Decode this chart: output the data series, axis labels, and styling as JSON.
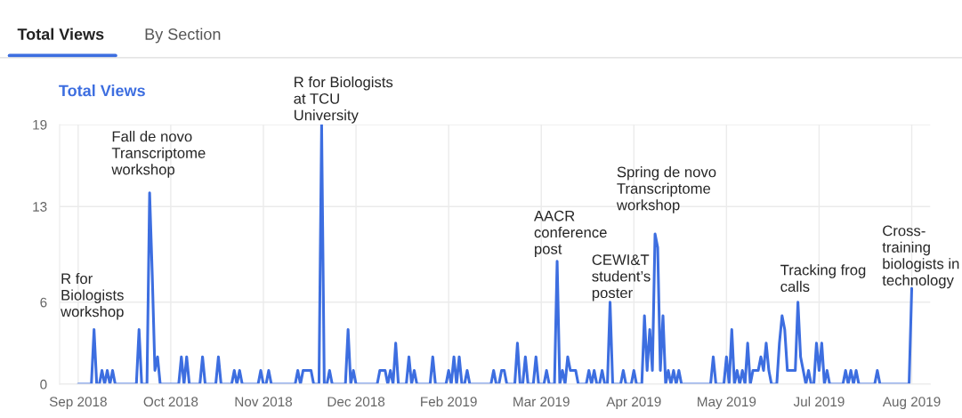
{
  "chart_data": {
    "type": "line",
    "title": "Total Views",
    "categories": [
      "Sep 2018",
      null,
      null,
      null,
      null,
      null,
      null,
      null,
      null,
      null,
      null,
      null,
      null,
      null,
      null,
      null,
      null,
      null,
      null,
      null,
      null,
      null,
      null,
      null,
      null,
      null,
      null,
      null,
      null,
      null,
      null,
      null,
      null,
      null,
      null,
      "Oct 2018",
      null,
      null,
      null,
      null,
      null,
      null,
      null,
      null,
      null,
      null,
      null,
      null,
      null,
      null,
      null,
      null,
      null,
      null,
      null,
      null,
      null,
      null,
      null,
      null,
      null,
      null,
      null,
      null,
      null,
      null,
      null,
      null,
      null,
      null,
      "Nov 2018",
      null,
      null,
      null,
      null,
      null,
      null,
      null,
      null,
      null,
      null,
      null,
      null,
      null,
      null,
      null,
      null,
      null,
      null,
      null,
      null,
      null,
      null,
      null,
      null,
      null,
      null,
      null,
      null,
      null,
      null,
      null,
      null,
      null,
      null,
      "Dec 2018",
      null,
      null,
      null,
      null,
      null,
      null,
      null,
      null,
      null,
      null,
      null,
      null,
      null,
      null,
      null,
      null,
      null,
      null,
      null,
      null,
      null,
      null,
      null,
      null,
      null,
      null,
      null,
      null,
      null,
      null,
      null,
      null,
      null,
      null,
      "Feb 2019",
      null,
      null,
      null,
      null,
      null,
      null,
      null,
      null,
      null,
      null,
      null,
      null,
      null,
      null,
      null,
      null,
      null,
      null,
      null,
      null,
      null,
      null,
      null,
      null,
      null,
      null,
      null,
      null,
      null,
      null,
      null,
      null,
      null,
      null,
      "Mar 2019",
      null,
      null,
      null,
      null,
      null,
      null,
      null,
      null,
      null,
      null,
      null,
      null,
      null,
      null,
      null,
      null,
      null,
      null,
      null,
      null,
      null,
      null,
      null,
      null,
      null,
      null,
      null,
      null,
      null,
      null,
      null,
      null,
      null,
      null,
      "Apr 2019",
      null,
      null,
      null,
      null,
      null,
      null,
      null,
      null,
      null,
      null,
      null,
      null,
      null,
      null,
      null,
      null,
      null,
      null,
      null,
      null,
      null,
      null,
      null,
      null,
      null,
      null,
      null,
      null,
      null,
      null,
      null,
      null,
      null,
      null,
      "May 2019",
      null,
      null,
      null,
      null,
      null,
      null,
      null,
      null,
      null,
      null,
      null,
      null,
      null,
      null,
      null,
      null,
      null,
      null,
      null,
      null,
      null,
      null,
      null,
      null,
      null,
      null,
      null,
      null,
      null,
      null,
      null,
      null,
      null,
      null,
      "Jul 2019",
      null,
      null,
      null,
      null,
      null,
      null,
      null,
      null,
      null,
      null,
      null,
      null,
      null,
      null,
      null,
      null,
      null,
      null,
      null,
      null,
      null,
      null,
      null,
      null,
      null,
      null,
      null,
      null,
      null,
      null,
      null,
      null,
      null,
      null,
      "Aug 2019"
    ],
    "series": [
      {
        "color": "#3d6ee0",
        "values": [
          0,
          0,
          0,
          0,
          0,
          0,
          4,
          0,
          0,
          1,
          0,
          1,
          0,
          1,
          0,
          0,
          0,
          0,
          0,
          0,
          0,
          0,
          0,
          4,
          0,
          0,
          0,
          14,
          8,
          1,
          2,
          0,
          0,
          0,
          0,
          0,
          0,
          0,
          0,
          2,
          0,
          2,
          0,
          0,
          0,
          0,
          0,
          2,
          0,
          0,
          0,
          0,
          0,
          2,
          0,
          0,
          0,
          0,
          0,
          1,
          0,
          1,
          0,
          0,
          0,
          0,
          0,
          0,
          0,
          1,
          0,
          0,
          1,
          0,
          0,
          0,
          0,
          0,
          0,
          0,
          0,
          0,
          0,
          1,
          0,
          1,
          1,
          1,
          1,
          0,
          0,
          0,
          19,
          0,
          0,
          1,
          0,
          0,
          0,
          0,
          0,
          0,
          4,
          0,
          1,
          0,
          0,
          0,
          0,
          0,
          0,
          0,
          0,
          0,
          1,
          1,
          1,
          0,
          1,
          0,
          3,
          0,
          0,
          0,
          0,
          2,
          0,
          1,
          0,
          0,
          0,
          0,
          0,
          0,
          2,
          0,
          0,
          0,
          0,
          0,
          1,
          0,
          2,
          0,
          2,
          0,
          0,
          1,
          0,
          0,
          0,
          0,
          0,
          0,
          0,
          0,
          0,
          1,
          0,
          0,
          1,
          1,
          0,
          0,
          0,
          0,
          3,
          0,
          0,
          2,
          0,
          0,
          0,
          2,
          0,
          0,
          0,
          1,
          0,
          0,
          0,
          9,
          0,
          1,
          0,
          2,
          1,
          1,
          1,
          0,
          0,
          0,
          0,
          1,
          0,
          1,
          0,
          0,
          1,
          0,
          0,
          6,
          0,
          0,
          0,
          0,
          1,
          0,
          0,
          0,
          1,
          0,
          0,
          0,
          5,
          1,
          4,
          1,
          11,
          10,
          1,
          5,
          0,
          1,
          0,
          1,
          0,
          1,
          0,
          0,
          0,
          0,
          0,
          0,
          0,
          0,
          0,
          0,
          0,
          0,
          2,
          0,
          0,
          0,
          0,
          2,
          0,
          4,
          0,
          1,
          0,
          1,
          0,
          3,
          0,
          1,
          1,
          1,
          2,
          1,
          3,
          1,
          0,
          0,
          0,
          3,
          5,
          4,
          1,
          1,
          1,
          1,
          6,
          2,
          1,
          0,
          1,
          0,
          0,
          3,
          1,
          3,
          0,
          1,
          0,
          0,
          0,
          0,
          0,
          0,
          1,
          0,
          1,
          0,
          1,
          0,
          0,
          0,
          0,
          0,
          0,
          0,
          1,
          0,
          0,
          0,
          0,
          0,
          0,
          0,
          0,
          0,
          0,
          0,
          0,
          7
        ]
      }
    ],
    "ylim": [
      0,
      19
    ],
    "yticks": [
      0,
      6,
      13,
      19
    ],
    "grid": true,
    "marker": "none",
    "line_style": "solid",
    "annotations": [
      "Total Views",
      "By Section",
      "R for\nBiologists\nworkshop",
      "Fall de novo\nTranscriptome\nworkshop",
      "R for Biologists\nat TCU\nUniversity",
      "AACR\nconference\npost",
      "CEWI&T\nstudent’s\nposter",
      "Spring de novo\nTranscriptome\nworkshop",
      "Tracking frog\ncalls",
      "Cross-\ntraining\nbiologists in\ntechnology"
    ]
  }
}
